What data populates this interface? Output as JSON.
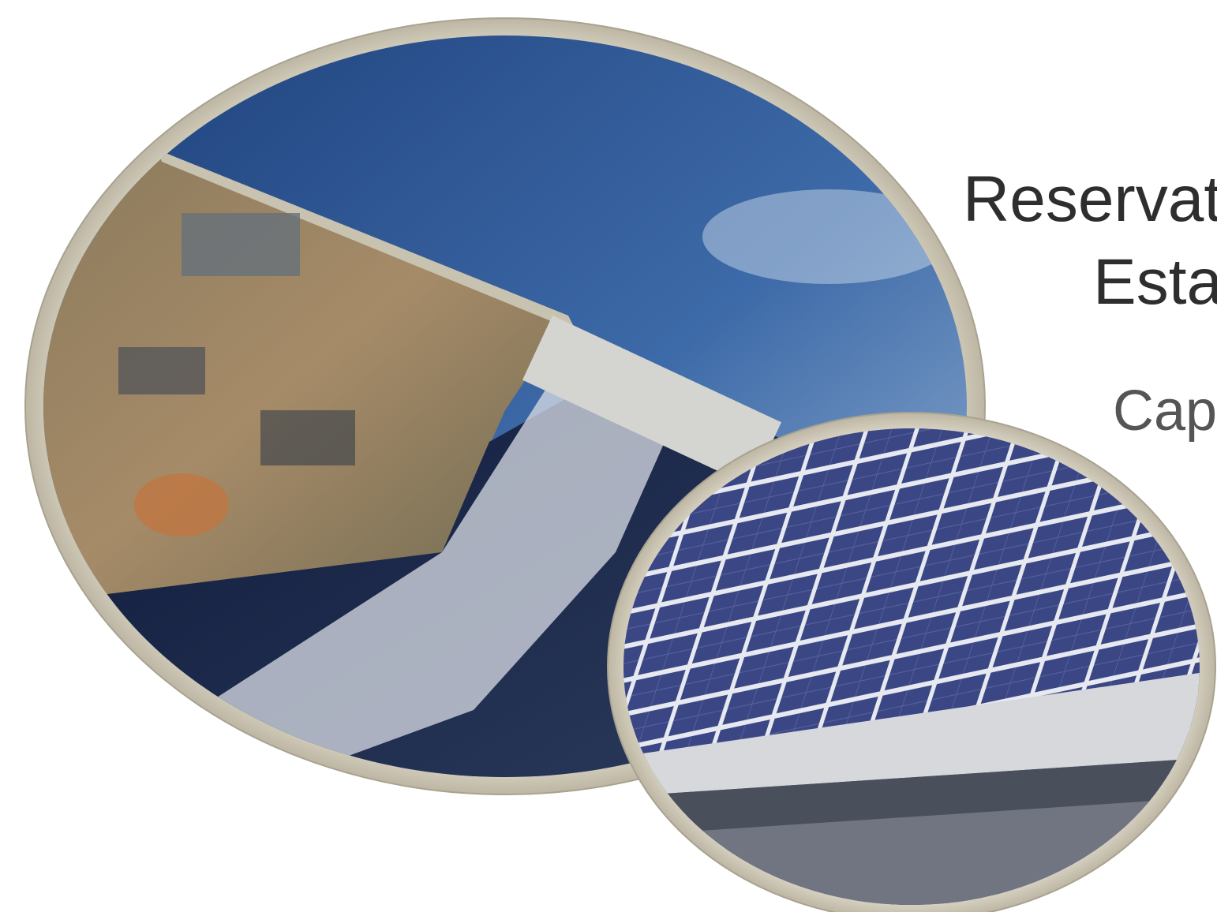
{
  "title": {
    "line1": "Reservat",
    "line2": "Esta"
  },
  "subtitle": "Cap"
}
